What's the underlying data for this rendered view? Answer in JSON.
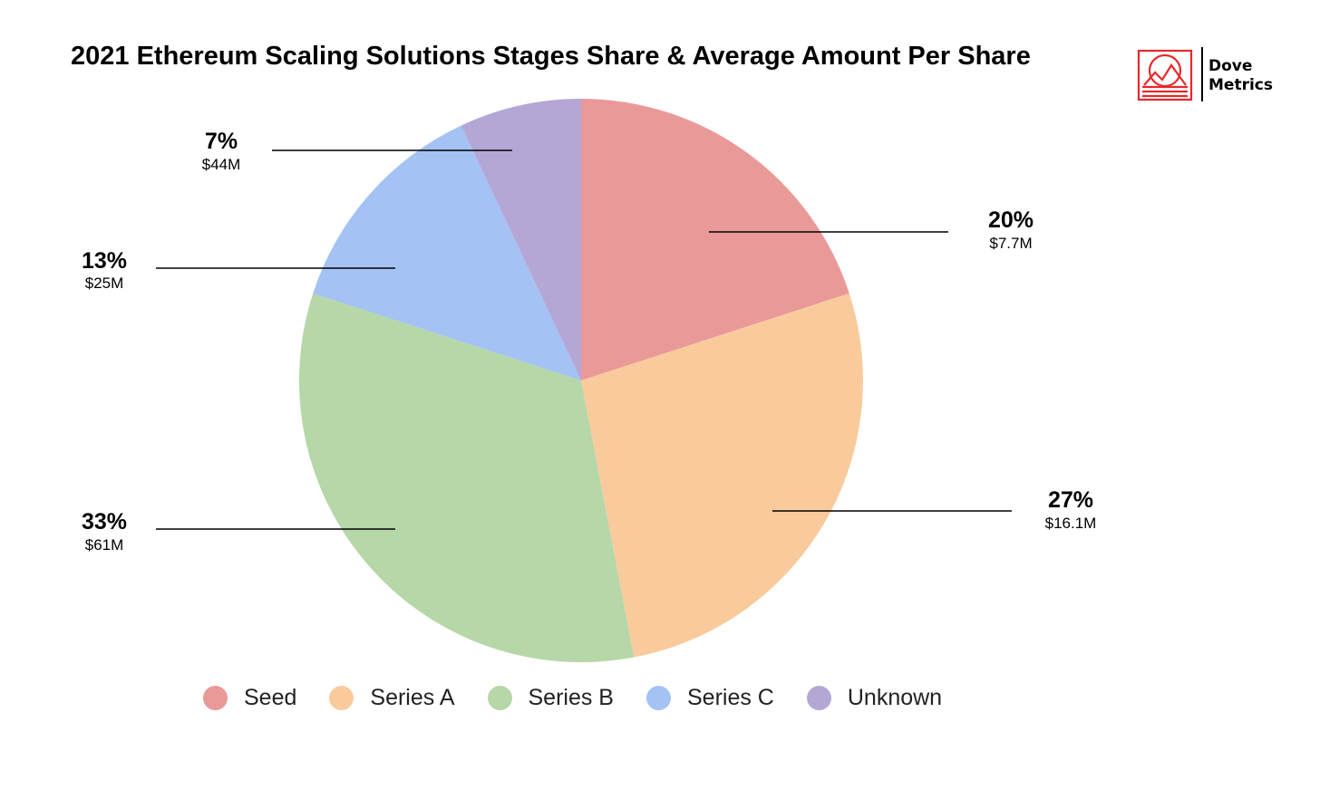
{
  "logo": {
    "line1": "Dove",
    "line2": "Metrics",
    "color": "#e8282b"
  },
  "chart_data": {
    "type": "pie",
    "title": "2021 Ethereum Scaling Solutions Stages Share & Average Amount Per Share",
    "legend_position": "bottom",
    "slices": [
      {
        "name": "Seed",
        "share": 20,
        "label": "20%",
        "amount": "$7.7M",
        "color": "#ea9999"
      },
      {
        "name": "Series A",
        "share": 27,
        "label": "27%",
        "amount": "$16.1M",
        "color": "#f9cb9c"
      },
      {
        "name": "Series B",
        "share": 33,
        "label": "33%",
        "amount": "$61M",
        "color": "#b6d7a8"
      },
      {
        "name": "Series C",
        "share": 13,
        "label": "13%",
        "amount": "$25M",
        "color": "#a4c2f4"
      },
      {
        "name": "Unknown",
        "share": 7,
        "label": "7%",
        "amount": "$44M",
        "color": "#b4a7d6"
      }
    ]
  }
}
